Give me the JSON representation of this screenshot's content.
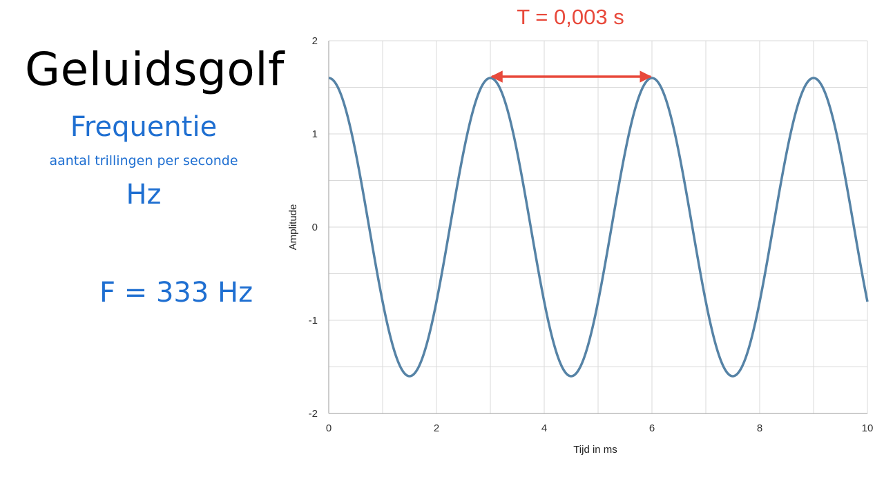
{
  "slide": {
    "title": "Geluidsgolf",
    "subtitle": "Frequentie",
    "caption": "aantal trillingen per seconde",
    "unit": "Hz",
    "formula": "F = 333 Hz"
  },
  "colors": {
    "accent_blue": "#1f6fd1",
    "curve": "#5683a6",
    "arrow": "#e8493b",
    "grid": "#d9d9d9",
    "axis": "#9a9a9a"
  },
  "chart_data": {
    "type": "line",
    "function": "1.6*cos(2*pi*x/3)",
    "amplitude": 1.6,
    "period_ms": 3,
    "xlim": [
      0,
      10
    ],
    "ylim": [
      -2,
      2
    ],
    "xlabel": "Tijd in ms",
    "ylabel": "Amplitude",
    "x_ticks": [
      "0",
      "2",
      "4",
      "6",
      "8",
      "10"
    ],
    "y_ticks": [
      "2",
      "1",
      "0",
      "-1",
      "-2"
    ],
    "grid": true,
    "annotation": {
      "label": "T = 0,003 s",
      "x_start": 3,
      "x_end": 6,
      "y": 1.6
    }
  }
}
